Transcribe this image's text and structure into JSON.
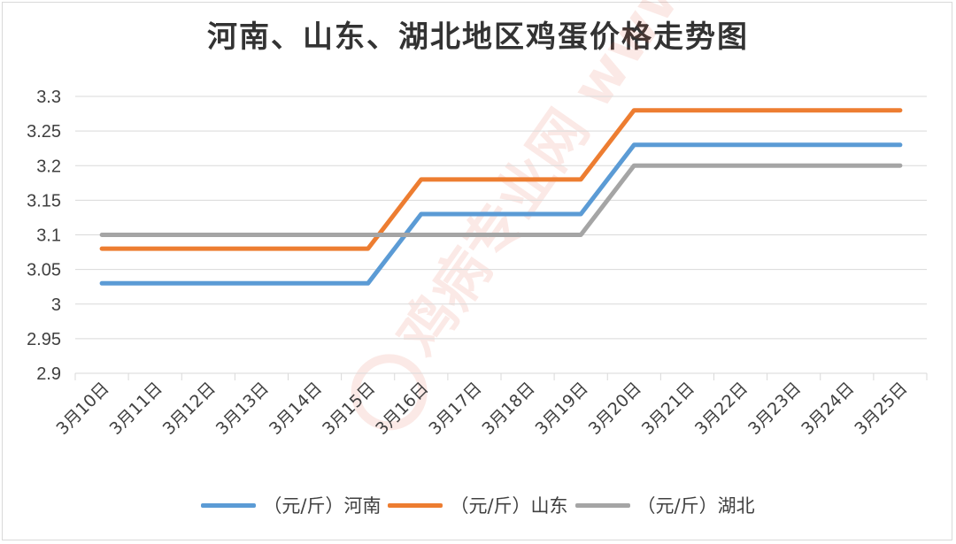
{
  "chart_data": {
    "type": "line",
    "title": "河南、山东、湖北地区鸡蛋价格走势图",
    "categories": [
      "3月10日",
      "3月11日",
      "3月12日",
      "3月13日",
      "3月14日",
      "3月15日",
      "3月16日",
      "3月17日",
      "3月18日",
      "3月19日",
      "3月20日",
      "3月21日",
      "3月22日",
      "3月23日",
      "3月24日",
      "3月25日"
    ],
    "ylim": [
      2.9,
      3.3
    ],
    "yticks": [
      "3.3",
      "3.25",
      "3.2",
      "3.15",
      "3.1",
      "3.05",
      "3",
      "2.95",
      "2.9"
    ],
    "grid": true,
    "legend_position": "bottom",
    "series": [
      {
        "name": "（元/斤）河南",
        "color": "#5b9bd5",
        "values": [
          3.03,
          3.03,
          3.03,
          3.03,
          3.03,
          3.03,
          3.13,
          3.13,
          3.13,
          3.13,
          3.23,
          3.23,
          3.23,
          3.23,
          3.23,
          3.23
        ]
      },
      {
        "name": "（元/斤）山东",
        "color": "#ed7d31",
        "values": [
          3.08,
          3.08,
          3.08,
          3.08,
          3.08,
          3.08,
          3.18,
          3.18,
          3.18,
          3.18,
          3.28,
          3.28,
          3.28,
          3.28,
          3.28,
          3.28
        ]
      },
      {
        "name": "（元/斤）湖北",
        "color": "#a5a5a5",
        "values": [
          3.1,
          3.1,
          3.1,
          3.1,
          3.1,
          3.1,
          3.1,
          3.1,
          3.1,
          3.1,
          3.2,
          3.2,
          3.2,
          3.2,
          3.2,
          3.2
        ]
      }
    ]
  },
  "watermark": "鸡病专业网 www.jbzyw.com"
}
